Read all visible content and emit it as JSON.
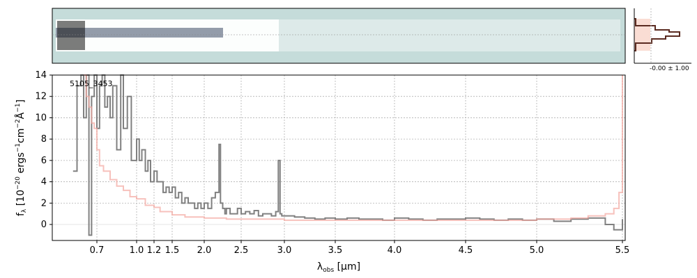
{
  "chart_data": {
    "type": "line",
    "object_label": "5105_3453",
    "xlabel": "λ_obs [μm]",
    "ylabel": "f_λ [10^-20 ergs^-1 cm^-2 Å^-1]",
    "ylim": [
      -1.5,
      14
    ],
    "x_ticks": [
      0.7,
      1.0,
      1.2,
      1.5,
      2.0,
      2.5,
      3.0,
      3.5,
      4.0,
      4.5,
      5.0,
      5.5
    ],
    "y_ticks": [
      0,
      2,
      4,
      6,
      8,
      10,
      12,
      14
    ],
    "grid": true,
    "series": [
      {
        "color": "#808080",
        "x": [
          0.52,
          0.55,
          0.58,
          0.6,
          0.62,
          0.64,
          0.66,
          0.68,
          0.7,
          0.72,
          0.74,
          0.76,
          0.78,
          0.8,
          0.82,
          0.85,
          0.88,
          0.9,
          0.93,
          0.96,
          1.0,
          1.03,
          1.06,
          1.1,
          1.13,
          1.16,
          1.2,
          1.25,
          1.3,
          1.35,
          1.4,
          1.45,
          1.5,
          1.55,
          1.6,
          1.65,
          1.7,
          1.75,
          1.8,
          1.85,
          1.9,
          1.95,
          2.0,
          2.05,
          2.1,
          2.15,
          2.2,
          2.22,
          2.25,
          2.28,
          2.3,
          2.35,
          2.4,
          2.45,
          2.5,
          2.55,
          2.6,
          2.65,
          2.7,
          2.75,
          2.8,
          2.85,
          2.9,
          2.93,
          2.95,
          2.97,
          3.0,
          3.1,
          3.2,
          3.3,
          3.4,
          3.5,
          3.6,
          3.7,
          3.8,
          3.9,
          4.0,
          4.1,
          4.2,
          4.3,
          4.4,
          4.5,
          4.6,
          4.7,
          4.8,
          4.9,
          5.0,
          5.1,
          5.2,
          5.3,
          5.4,
          5.45,
          5.5
        ],
        "y": [
          5,
          13,
          14,
          10,
          14,
          -1,
          12,
          14,
          9,
          13,
          14,
          11,
          12,
          10,
          13,
          7,
          14,
          9,
          12,
          6,
          8,
          6,
          7,
          5,
          6,
          4,
          5,
          4,
          4,
          3,
          3.5,
          3,
          3.5,
          2.5,
          3,
          2,
          2.5,
          2,
          2,
          1.5,
          2,
          1.5,
          2,
          1.5,
          2.5,
          3,
          7.5,
          2,
          1.5,
          1,
          1.5,
          1,
          1,
          1.5,
          1,
          1.2,
          1,
          1.3,
          0.8,
          1,
          1,
          0.8,
          1.2,
          6,
          1,
          0.8,
          0.8,
          0.7,
          0.6,
          0.5,
          0.6,
          0.5,
          0.6,
          0.5,
          0.5,
          0.4,
          0.6,
          0.5,
          0.4,
          0.5,
          0.5,
          0.6,
          0.5,
          0.4,
          0.5,
          0.4,
          0.5,
          0.3,
          0.5,
          0.6,
          0,
          -0.5,
          0.5
        ]
      },
      {
        "color": "#f4a7a0",
        "x": [
          0.6,
          0.62,
          0.64,
          0.66,
          0.68,
          0.7,
          0.72,
          0.75,
          0.8,
          0.85,
          0.9,
          0.95,
          1.0,
          1.1,
          1.2,
          1.3,
          1.5,
          1.7,
          2.0,
          2.3,
          2.5,
          3.0,
          3.5,
          4.0,
          4.5,
          5.0,
          5.2,
          5.3,
          5.4,
          5.45,
          5.48,
          5.5
        ],
        "y": [
          14,
          12,
          11,
          9.5,
          9,
          7,
          5.5,
          5,
          4.2,
          3.6,
          3.2,
          2.6,
          2.4,
          1.8,
          1.6,
          1.2,
          0.9,
          0.7,
          0.6,
          0.5,
          0.5,
          0.4,
          0.4,
          0.4,
          0.4,
          0.5,
          0.6,
          0.8,
          1,
          1.5,
          3,
          14
        ]
      }
    ]
  },
  "top_panel": {
    "histogram_label": "-0.00 ± 1.00",
    "cmap_bg": "#c5dcda"
  }
}
